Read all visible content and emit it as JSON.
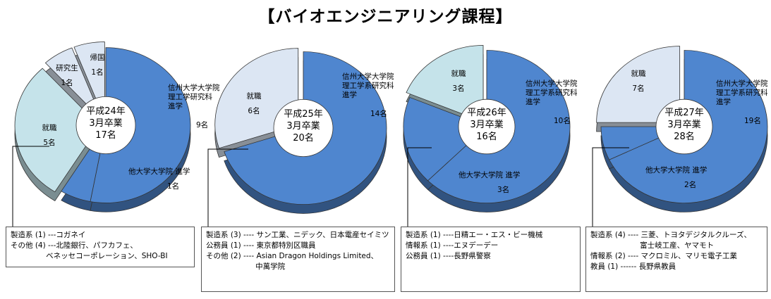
{
  "page": {
    "title": "【バイオエンジニアリング課程】"
  },
  "colors": {
    "dark_blue": "#4F86CF",
    "light_cyan": "#C5E3EA",
    "pale_blue": "#DCE6F3",
    "outline": "#333333"
  },
  "chart_data": [
    {
      "type": "pie",
      "center_label": [
        "平成24年",
        "3月卒業",
        "17名"
      ],
      "total": 17,
      "slices": [
        {
          "label": "信州大学大学院 理工学研究科 進学",
          "count_text": "9名",
          "value": 9
        },
        {
          "label": "他大学大学院 進学",
          "count_text": "1名",
          "value": 1
        },
        {
          "label": "就職",
          "count_text": "5名",
          "value": 5
        },
        {
          "label": "研究生",
          "count_text": "1名",
          "value": 1
        },
        {
          "label": "帰国",
          "count_text": "1名",
          "value": 1
        }
      ],
      "note_lines": [
        "製造系 (1) ---コガネイ",
        "その他 (4) ---北陸銀行、パフカフェ、",
        "               ベネッセコーポレーション、SHO-BI"
      ]
    },
    {
      "type": "pie",
      "center_label": [
        "平成25年",
        "3月卒業",
        "20名"
      ],
      "total": 20,
      "slices": [
        {
          "label": "信州大学大学院 理工学系研究科 進学",
          "count_text": "14名",
          "value": 14
        },
        {
          "label": "就職",
          "count_text": "6名",
          "value": 6
        }
      ],
      "note_lines": [
        "製造系 (3) ---- サン工業、ニデック、日本電産セイミツ",
        "公務員 (1) ---- 東京都特別区職員",
        "その他 (2) ---- Asian Dragon Holdings Limited、",
        "                     中萬学院"
      ]
    },
    {
      "type": "pie",
      "center_label": [
        "平成26年",
        "3月卒業",
        "16名"
      ],
      "total": 16,
      "slices": [
        {
          "label": "信州大学大学院 理工学系研究科 進学",
          "count_text": "10名",
          "value": 10
        },
        {
          "label": "他大学大学院 進学",
          "count_text": "3名",
          "value": 3
        },
        {
          "label": "就職",
          "count_text": "3名",
          "value": 3
        }
      ],
      "note_lines": [
        "製造系 (1) ----日精エー・エス・ビー機械",
        "情報系 (1) ----エヌデーデー",
        "公務員 (1) ----長野県警察"
      ]
    },
    {
      "type": "pie",
      "center_label": [
        "平成27年",
        "3月卒業",
        "28名"
      ],
      "total": 28,
      "slices": [
        {
          "label": "信州大学大学院 理工学系研究科 進学",
          "count_text": "19名",
          "value": 19
        },
        {
          "label": "他大学大学院 進学",
          "count_text": "2名",
          "value": 2
        },
        {
          "label": "就職",
          "count_text": "7名",
          "value": 7
        }
      ],
      "note_lines": [
        "製造系 (4) ---- 三菱、トヨタデジタルクルーズ、",
        "                     富士岐工産、ヤマモト",
        "情報系 (2) ---- マクロミル、マリモ電子工業",
        "教員 (1) ------ 長野県教員"
      ]
    }
  ]
}
